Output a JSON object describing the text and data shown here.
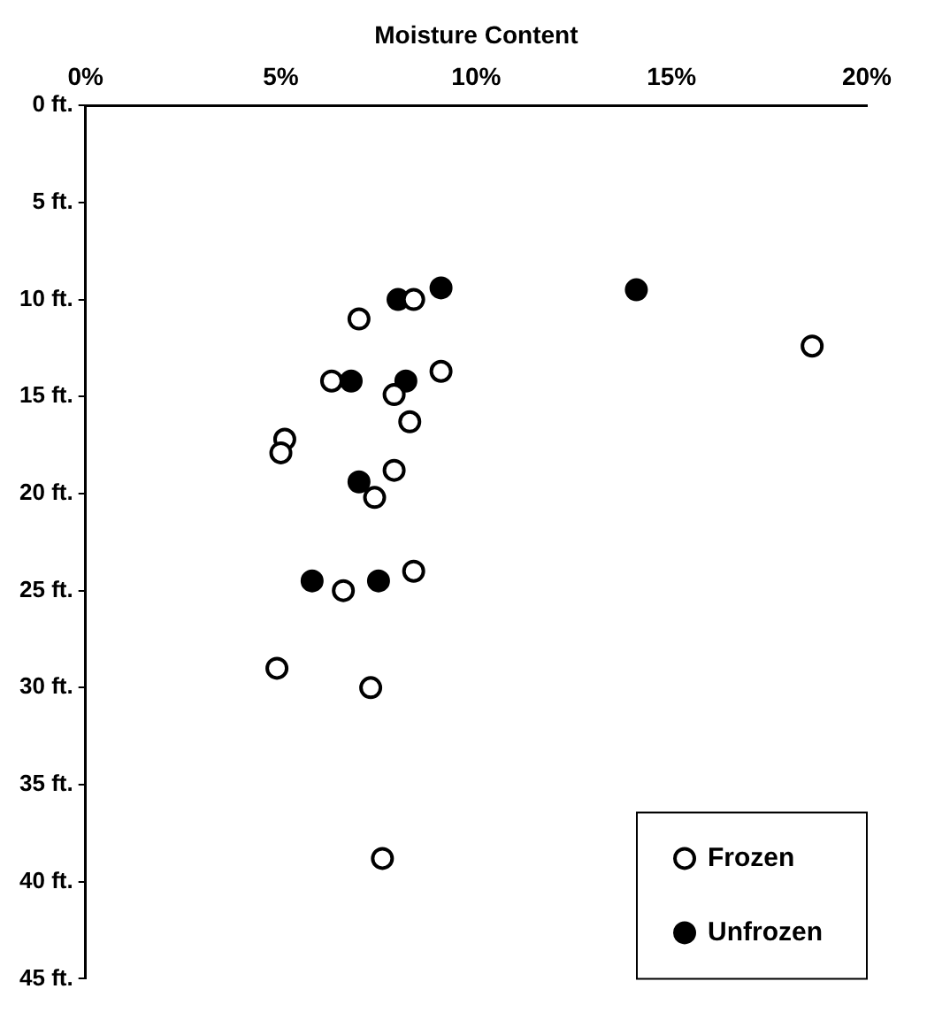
{
  "chart_data": {
    "type": "scatter",
    "xlabel": "Moisture Content",
    "xlim": [
      0,
      20
    ],
    "xticks": [
      {
        "value": 0,
        "label": "0%"
      },
      {
        "value": 5,
        "label": "5%"
      },
      {
        "value": 10,
        "label": "10%"
      },
      {
        "value": 15,
        "label": "15%"
      },
      {
        "value": 20,
        "label": "20%"
      }
    ],
    "ylim": [
      45,
      0
    ],
    "yticks": [
      {
        "value": 0,
        "label": "0 ft."
      },
      {
        "value": 5,
        "label": "5 ft."
      },
      {
        "value": 10,
        "label": "10 ft."
      },
      {
        "value": 15,
        "label": "15 ft."
      },
      {
        "value": 20,
        "label": "20 ft."
      },
      {
        "value": 25,
        "label": "25 ft."
      },
      {
        "value": 30,
        "label": "30 ft."
      },
      {
        "value": 35,
        "label": "35 ft."
      },
      {
        "value": 40,
        "label": "40 ft."
      },
      {
        "value": 45,
        "label": "45 ft."
      }
    ],
    "grid": false,
    "legend": "bottom right",
    "marker": "circle",
    "series": [
      {
        "name": "Frozen",
        "color": "#ffffff",
        "x": [
          7.0,
          8.4,
          18.6,
          9.1,
          6.3,
          7.9,
          8.3,
          5.1,
          5.0,
          7.9,
          7.4,
          8.4,
          6.6,
          4.9,
          7.3,
          7.6
        ],
        "values": [
          11,
          10,
          12.4,
          13.7,
          14.2,
          14.9,
          16.3,
          17.2,
          17.9,
          18.8,
          20.2,
          24,
          25,
          29,
          30,
          38.8
        ]
      },
      {
        "name": "Unfrozen",
        "color": "#000000",
        "x": [
          8.0,
          9.1,
          14.1,
          6.8,
          8.2,
          7.0,
          5.8,
          7.5
        ],
        "values": [
          10,
          9.4,
          9.5,
          14.2,
          14.2,
          19.4,
          24.5,
          24.5
        ]
      }
    ]
  }
}
